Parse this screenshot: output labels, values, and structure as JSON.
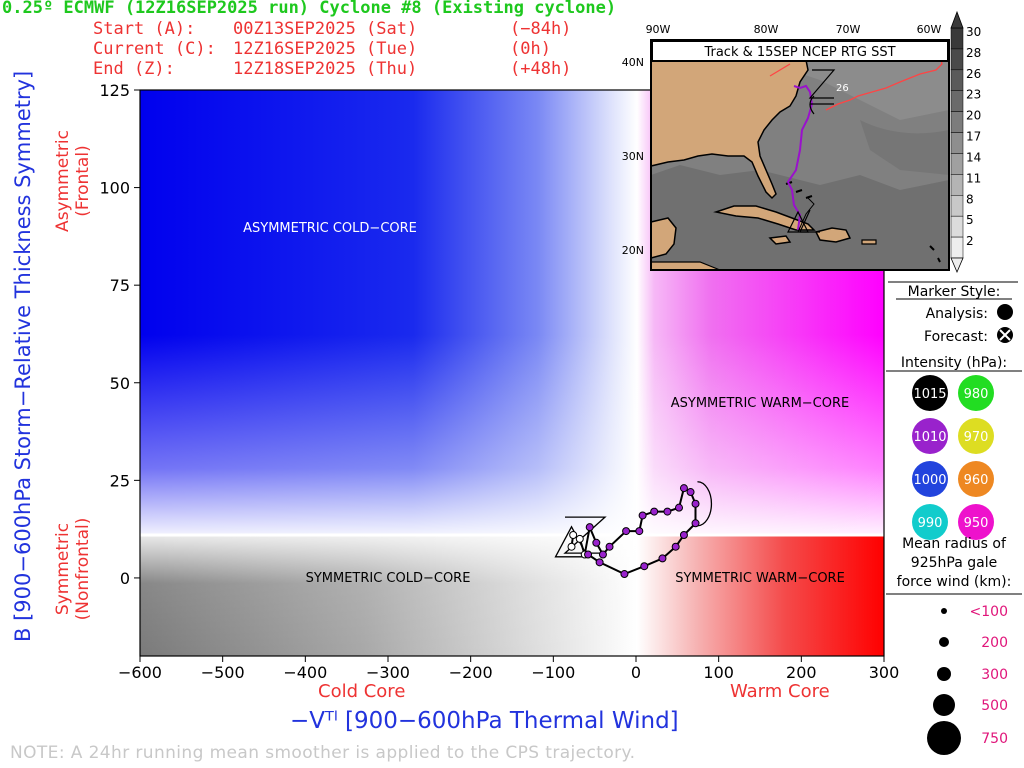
{
  "header": {
    "title": "0.25º ECMWF (12Z16SEP2025 run) Cyclone #8 (Existing cyclone)",
    "start": {
      "label": "Start (A):",
      "date": "00Z13SEP2025 (Sat)",
      "offset": "(−84h)"
    },
    "current": {
      "label": "Current (C):",
      "date": "12Z16SEP2025 (Tue)",
      "offset": "(0h)"
    },
    "end": {
      "label": "End (Z):",
      "date": "12Z18SEP2025 (Thu)",
      "offset": "(+48h)"
    }
  },
  "axes": {
    "ylabel": "B [900−600hPa Storm−Relative Thickness Symmetry]",
    "xlabel": "−Vᵀˡ [900−600hPa Thermal Wind]",
    "asym_label_1": "Asymmetric",
    "asym_label_2": "(Frontal)",
    "sym_label_1": "Symmetric",
    "sym_label_2": "(Nonfrontal)",
    "cold_core": "Cold Core",
    "warm_core": "Warm Core"
  },
  "quadrants": {
    "asym_cold": "ASYMMETRIC COLD−CORE",
    "asym_warm": "ASYMMETRIC WARM−CORE",
    "sym_cold": "SYMMETRIC COLD−CORE",
    "sym_warm": "SYMMETRIC WARM−CORE"
  },
  "map": {
    "title": "Track & 15SEP NCEP RTG SST",
    "lon_labels": [
      "90W",
      "80W",
      "70W",
      "60W"
    ],
    "lat_labels": [
      "40N",
      "30N",
      "20N"
    ],
    "sst_label": "26",
    "colorbar": [
      "30",
      "28",
      "26",
      "23",
      "20",
      "17",
      "14",
      "11",
      "8",
      "5",
      "2"
    ],
    "colorbar_colors": [
      "#3a3a3a",
      "#4a4a4a",
      "#5a5a5a",
      "#6a6a6a",
      "#7c7c7c",
      "#8e8e8e",
      "#a0a0a0",
      "#b4b4b4",
      "#c8c8c8",
      "#dcdcdc",
      "#eeeeee"
    ]
  },
  "legend": {
    "marker_style": "Marker Style:",
    "analysis": "Analysis:",
    "forecast": "Forecast:",
    "intensity_title": "Intensity (hPa):",
    "intensity": [
      {
        "label": "1015",
        "color": "#000000",
        "text_color": "#ffffff"
      },
      {
        "label": "980",
        "color": "#22dd22",
        "text_color": "#ffffff"
      },
      {
        "label": "1010",
        "color": "#9922cc",
        "text_color": "#ffffff"
      },
      {
        "label": "970",
        "color": "#dddd22",
        "text_color": "#ffffff"
      },
      {
        "label": "1000",
        "color": "#2244dd",
        "text_color": "#ffffff"
      },
      {
        "label": "960",
        "color": "#ee8822",
        "text_color": "#ffffff"
      },
      {
        "label": "990",
        "color": "#11cccc",
        "text_color": "#ffffff"
      },
      {
        "label": "950",
        "color": "#ee11cc",
        "text_color": "#ffffff"
      }
    ],
    "radius_title_1": "Mean radius of",
    "radius_title_2": "925hPa gale",
    "radius_title_3": "force wind (km):",
    "radius": [
      "<100",
      "200",
      "300",
      "500",
      "750"
    ]
  },
  "note": "NOTE:  A 24hr running mean smoother is applied to the CPS trajectory.",
  "chart_data": {
    "type": "scatter",
    "title": "",
    "xlabel": "−Vᵀˡ [900−600hPa Thermal Wind]",
    "ylabel": "B [900−600hPa Storm−Relative Thickness Symmetry]",
    "xlim": [
      -600,
      300
    ],
    "ylim": [
      -20,
      125
    ],
    "xticks": [
      -600,
      -500,
      -400,
      -300,
      -200,
      -100,
      0,
      100,
      200,
      300
    ],
    "yticks": [
      0,
      25,
      50,
      75,
      100,
      125
    ],
    "threshold_y": 10,
    "threshold_x": 0,
    "grid": false,
    "track": {
      "start_marker_A": [
        -78,
        9
      ],
      "current_marker_C": [
        -52,
        12
      ],
      "end_marker_Z": [
        84,
        19
      ],
      "analysis_points": [
        {
          "x": -78,
          "y": 8,
          "color": "#ffffff"
        },
        {
          "x": -76,
          "y": 11,
          "color": "#ffffff"
        },
        {
          "x": -68,
          "y": 10,
          "color": "#ffffff"
        },
        {
          "x": -62,
          "y": 6,
          "color": "#ffffff"
        },
        {
          "x": -56,
          "y": 13,
          "color": "#9922cc"
        },
        {
          "x": -48,
          "y": 9,
          "color": "#9922cc"
        },
        {
          "x": -40,
          "y": 6,
          "color": "#9922cc"
        },
        {
          "x": -32,
          "y": 8,
          "color": "#9922cc"
        },
        {
          "x": -12,
          "y": 12,
          "color": "#9922cc"
        },
        {
          "x": 4,
          "y": 12,
          "color": "#9922cc"
        },
        {
          "x": 8,
          "y": 16,
          "color": "#9922cc"
        },
        {
          "x": 22,
          "y": 17,
          "color": "#9922cc"
        },
        {
          "x": 38,
          "y": 17,
          "color": "#9922cc"
        },
        {
          "x": 52,
          "y": 18,
          "color": "#9922cc"
        },
        {
          "x": 58,
          "y": 23,
          "color": "#9922cc"
        }
      ],
      "forecast_points": [
        {
          "x": 66,
          "y": 22,
          "color": "#9922cc"
        },
        {
          "x": 72,
          "y": 19,
          "color": "#9922cc"
        },
        {
          "x": 72,
          "y": 14,
          "color": "#9922cc"
        },
        {
          "x": 58,
          "y": 11,
          "color": "#9922cc"
        },
        {
          "x": 48,
          "y": 8,
          "color": "#9922cc"
        },
        {
          "x": 32,
          "y": 5,
          "color": "#9922cc"
        },
        {
          "x": 10,
          "y": 3,
          "color": "#9922cc"
        },
        {
          "x": -14,
          "y": 1,
          "color": "#9922cc"
        },
        {
          "x": -44,
          "y": 4,
          "color": "#9922cc"
        },
        {
          "x": -58,
          "y": 6,
          "color": "#9922cc"
        }
      ]
    }
  }
}
